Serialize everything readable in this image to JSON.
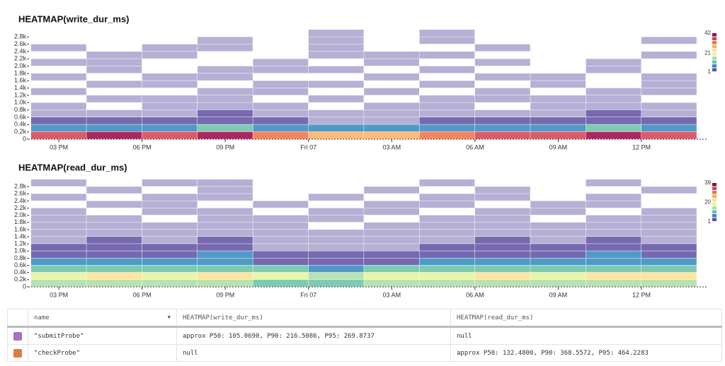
{
  "chart_data": [
    {
      "type": "heatmap",
      "title": "HEATMAP(write_dur_ms)",
      "x_bins": [
        14,
        16,
        18,
        20,
        22,
        24,
        26,
        28,
        30,
        32,
        34,
        36,
        38
      ],
      "y_bins": [
        0,
        200,
        400,
        600,
        800,
        1000,
        1200,
        1400,
        1600,
        1800,
        2000,
        2200,
        2400,
        2600,
        2800,
        3000
      ],
      "z": [
        [
          38,
          40,
          36,
          42,
          35,
          30,
          28,
          33,
          37,
          39,
          41,
          36
        ],
        [
          6,
          7,
          5,
          8,
          6,
          4,
          4,
          5,
          7,
          6,
          8,
          6
        ],
        [
          2,
          2,
          2,
          3,
          2,
          1,
          1,
          2,
          2,
          2,
          3,
          2
        ],
        [
          1,
          1,
          1,
          2,
          1,
          1,
          1,
          1,
          1,
          1,
          2,
          1
        ],
        [
          1,
          0,
          1,
          1,
          1,
          0,
          1,
          1,
          0,
          1,
          1,
          1
        ],
        [
          0,
          1,
          1,
          1,
          0,
          1,
          0,
          1,
          1,
          1,
          1,
          0
        ],
        [
          1,
          0,
          0,
          1,
          1,
          0,
          1,
          0,
          1,
          0,
          1,
          1
        ],
        [
          0,
          1,
          1,
          0,
          1,
          1,
          0,
          1,
          0,
          1,
          0,
          1
        ],
        [
          1,
          0,
          1,
          1,
          0,
          0,
          1,
          0,
          1,
          1,
          0,
          1
        ],
        [
          0,
          1,
          0,
          1,
          1,
          1,
          0,
          1,
          0,
          0,
          1,
          0
        ],
        [
          1,
          1,
          0,
          0,
          1,
          0,
          1,
          0,
          1,
          0,
          1,
          0
        ],
        [
          0,
          1,
          1,
          0,
          0,
          1,
          1,
          1,
          0,
          0,
          0,
          1
        ],
        [
          1,
          0,
          1,
          1,
          0,
          1,
          0,
          0,
          1,
          0,
          0,
          0
        ],
        [
          0,
          0,
          0,
          1,
          0,
          1,
          0,
          1,
          0,
          0,
          0,
          1
        ],
        [
          0,
          0,
          0,
          0,
          0,
          1,
          0,
          1,
          0,
          0,
          0,
          0
        ]
      ],
      "xlim": [
        13.9,
        38.4
      ],
      "ylim": [
        0,
        3000
      ],
      "zlim": [
        1,
        42
      ],
      "xticks": [
        {
          "value": 15,
          "label": "03 PM"
        },
        {
          "value": 18,
          "label": "06 PM"
        },
        {
          "value": 21,
          "label": "09 PM"
        },
        {
          "value": 24,
          "label": "Fri 07"
        },
        {
          "value": 27,
          "label": "03 AM"
        },
        {
          "value": 30,
          "label": "06 AM"
        },
        {
          "value": 33,
          "label": "09 AM"
        },
        {
          "value": 36,
          "label": "12 PM"
        }
      ],
      "yticks": [
        0,
        {
          "value": 200,
          "label": "0.2k"
        },
        {
          "value": 400,
          "label": "0.4k"
        },
        {
          "value": 600,
          "label": "0.6k"
        },
        {
          "value": 800,
          "label": "0.8k"
        },
        {
          "value": 1000,
          "label": "1.0k"
        },
        {
          "value": 1200,
          "label": "1.2k"
        },
        {
          "value": 1400,
          "label": "1.4k"
        },
        {
          "value": 1600,
          "label": "1.6k"
        },
        {
          "value": 1800,
          "label": "1.8k"
        },
        {
          "value": 2000,
          "label": "2.0k"
        },
        {
          "value": 2200,
          "label": "2.2k"
        },
        {
          "value": 2400,
          "label": "2.4k"
        },
        {
          "value": 2600,
          "label": "2.6k"
        },
        {
          "value": 2800,
          "label": "2.8k"
        }
      ],
      "legend_ticks": [
        42,
        21,
        1
      ],
      "colors": [
        "#5e4fa2",
        "#3288bd",
        "#66c2a5",
        "#abdda4",
        "#e6f598",
        "#fee08b",
        "#fdae61",
        "#f46d43",
        "#d53e4f",
        "#9e0142"
      ]
    },
    {
      "type": "heatmap",
      "title": "HEATMAP(read_dur_ms)",
      "x_bins": [
        14,
        16,
        18,
        20,
        22,
        24,
        26,
        28,
        30,
        32,
        34,
        36,
        38
      ],
      "y_bins": [
        0,
        200,
        400,
        600,
        800,
        1000,
        1200,
        1400,
        1600,
        1800,
        2000,
        2200,
        2400,
        2600,
        2800,
        3000
      ],
      "z": [
        [
          12,
          14,
          13,
          15,
          11,
          10,
          12,
          13,
          14,
          12,
          15,
          13
        ],
        [
          18,
          20,
          19,
          22,
          16,
          14,
          17,
          18,
          21,
          19,
          22,
          20
        ],
        [
          9,
          10,
          9,
          11,
          8,
          7,
          8,
          9,
          10,
          9,
          11,
          10
        ],
        [
          4,
          4,
          4,
          5,
          3,
          3,
          3,
          4,
          4,
          4,
          5,
          4
        ],
        [
          3,
          3,
          3,
          4,
          2,
          2,
          2,
          3,
          3,
          3,
          4,
          3
        ],
        [
          2,
          2,
          2,
          2,
          1,
          1,
          1,
          2,
          2,
          2,
          2,
          2
        ],
        [
          1,
          2,
          1,
          2,
          1,
          1,
          1,
          1,
          2,
          1,
          2,
          1
        ],
        [
          1,
          1,
          1,
          1,
          1,
          1,
          1,
          1,
          1,
          1,
          1,
          1
        ],
        [
          1,
          1,
          1,
          1,
          1,
          0,
          1,
          1,
          1,
          1,
          1,
          1
        ],
        [
          1,
          1,
          0,
          1,
          1,
          1,
          0,
          1,
          1,
          0,
          1,
          1
        ],
        [
          1,
          0,
          1,
          1,
          0,
          1,
          1,
          0,
          1,
          1,
          0,
          1
        ],
        [
          0,
          1,
          1,
          0,
          1,
          0,
          1,
          1,
          0,
          1,
          1,
          0
        ],
        [
          1,
          0,
          1,
          1,
          0,
          1,
          0,
          1,
          1,
          0,
          1,
          0
        ],
        [
          0,
          1,
          0,
          1,
          0,
          0,
          1,
          0,
          1,
          0,
          0,
          1
        ],
        [
          1,
          0,
          1,
          1,
          0,
          0,
          0,
          1,
          0,
          0,
          1,
          0
        ]
      ],
      "xlim": [
        13.9,
        38.4
      ],
      "ylim": [
        0,
        3000
      ],
      "zlim": [
        1,
        39
      ],
      "xticks": [
        {
          "value": 15,
          "label": "03 PM"
        },
        {
          "value": 18,
          "label": "06 PM"
        },
        {
          "value": 21,
          "label": "09 PM"
        },
        {
          "value": 24,
          "label": "Fri 07"
        },
        {
          "value": 27,
          "label": "03 AM"
        },
        {
          "value": 30,
          "label": "06 AM"
        },
        {
          "value": 33,
          "label": "09 AM"
        },
        {
          "value": 36,
          "label": "12 PM"
        }
      ],
      "yticks": [
        0,
        {
          "value": 200,
          "label": "0.2k"
        },
        {
          "value": 400,
          "label": "0.4k"
        },
        {
          "value": 600,
          "label": "0.6k"
        },
        {
          "value": 800,
          "label": "0.8k"
        },
        {
          "value": 1000,
          "label": "1.0k"
        },
        {
          "value": 1200,
          "label": "1.2k"
        },
        {
          "value": 1400,
          "label": "1.4k"
        },
        {
          "value": 1600,
          "label": "1.6k"
        },
        {
          "value": 1800,
          "label": "1.8k"
        },
        {
          "value": 2000,
          "label": "2.0k"
        },
        {
          "value": 2200,
          "label": "2.2k"
        },
        {
          "value": 2400,
          "label": "2.4k"
        },
        {
          "value": 2600,
          "label": "2.6k"
        },
        {
          "value": 2800,
          "label": "2.8k"
        }
      ],
      "legend_ticks": [
        39,
        20,
        1
      ],
      "colors": [
        "#5e4fa2",
        "#3288bd",
        "#66c2a5",
        "#abdda4",
        "#e6f598",
        "#fee08b",
        "#fdae61",
        "#f46d43",
        "#d53e4f",
        "#9e0142"
      ]
    }
  ],
  "table": {
    "columns": [
      "name",
      "HEATMAP(write_dur_ms)",
      "HEATMAP(read_dur_ms)"
    ],
    "rows": [
      {
        "color": "#a970c0",
        "cells": [
          "\"submitProbe\"",
          "approx P50: 105.0690, P90: 216.5086, P95: 269.8737",
          "null"
        ]
      },
      {
        "color": "#e07b39",
        "cells": [
          "\"checkProbe\"",
          "null",
          "approx P50: 132.4800, P90: 368.5572, P95: 464.2283"
        ]
      }
    ]
  }
}
